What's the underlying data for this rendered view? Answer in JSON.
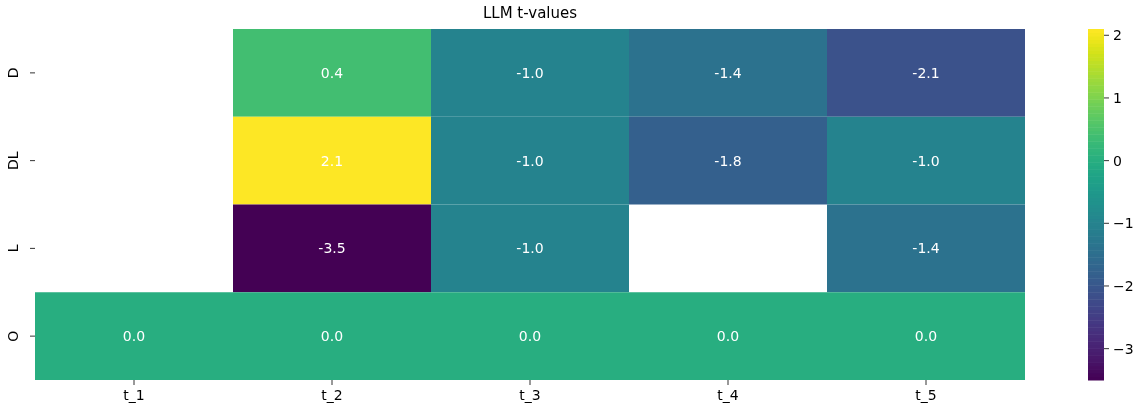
{
  "chart_data": {
    "type": "heatmap",
    "title": "LLM t-values",
    "categories": [
      "t_1",
      "t_2",
      "t_3",
      "t_4",
      "t_5"
    ],
    "y_categories": [
      "D",
      "DL",
      "L",
      "O"
    ],
    "cells": [
      [
        null,
        0.4,
        -1.0,
        -1.4,
        -2.1
      ],
      [
        null,
        2.1,
        -1.0,
        -1.8,
        -1.0
      ],
      [
        null,
        -3.5,
        -1.0,
        null,
        -1.4
      ],
      [
        0.0,
        0.0,
        0.0,
        0.0,
        0.0
      ]
    ],
    "cell_labels": [
      [
        null,
        "0.4",
        "-1.0",
        "-1.4",
        "-2.1"
      ],
      [
        null,
        "2.1",
        "-1.0",
        "-1.8",
        "-1.0"
      ],
      [
        null,
        "-3.5",
        "-1.0",
        null,
        "-1.4"
      ],
      [
        "0.0",
        "0.0",
        "0.0",
        "0.0",
        "0.0"
      ]
    ],
    "clim": [
      -3.5,
      2.1
    ],
    "cticks": [
      -3,
      -2,
      -1,
      0,
      1,
      2
    ]
  }
}
